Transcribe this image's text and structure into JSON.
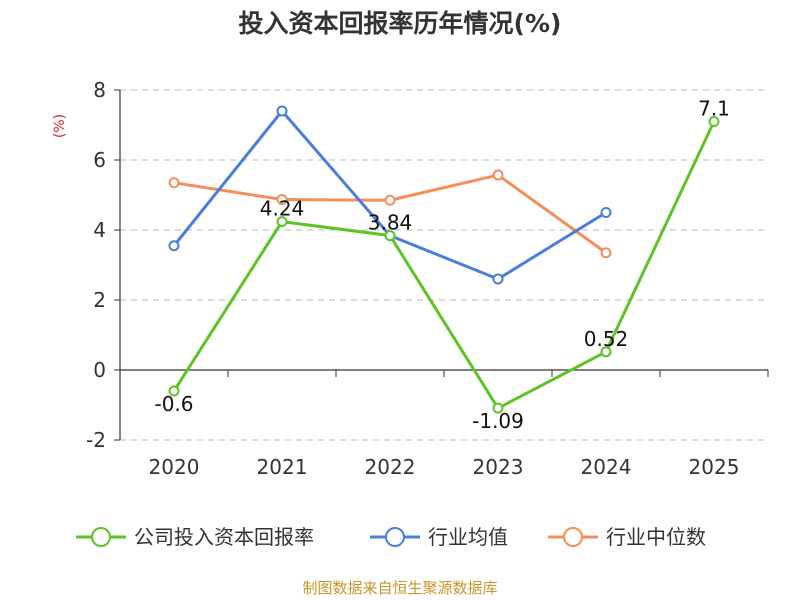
{
  "chart_data": {
    "type": "line",
    "title": "投入资本回报率历年情况(%)",
    "unit_label": "(%)",
    "categories": [
      "2020",
      "2021",
      "2022",
      "2023",
      "2024",
      "2025"
    ],
    "ylim": [
      -2,
      8
    ],
    "yticks": [
      -2,
      0,
      2,
      4,
      6,
      8
    ],
    "grid": true,
    "legend_position": "bottom",
    "series": [
      {
        "name": "公司投入资本回报率",
        "color": "#5cc424",
        "values": [
          -0.6,
          4.24,
          3.84,
          -1.09,
          0.52,
          7.1
        ],
        "labels": [
          "-0.6",
          "4.24",
          "3.84",
          "-1.09",
          "0.52",
          "7.1"
        ]
      },
      {
        "name": "行业均值",
        "color": "#4a7fd9",
        "values": [
          3.55,
          7.4,
          3.84,
          2.6,
          4.5,
          null
        ]
      },
      {
        "name": "行业中位数",
        "color": "#f58e5a",
        "values": [
          5.35,
          4.87,
          4.85,
          5.57,
          3.35,
          null
        ]
      }
    ]
  },
  "source": "制图数据来自恒生聚源数据库"
}
